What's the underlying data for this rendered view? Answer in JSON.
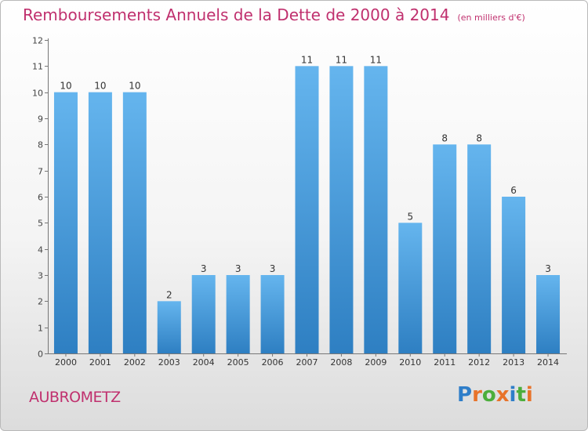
{
  "header": {
    "title": "Remboursements Annuels de la Dette de 2000 à 2014",
    "unit": "(en milliers d'€)"
  },
  "footer": {
    "commune": "AUBROMETZ",
    "logo": "Proxiti"
  },
  "colors": {
    "title": "#c0306e",
    "bar_light": "#65b5ee",
    "bar_dark": "#2e7fc2",
    "logo_letters": [
      "#2f7ec9",
      "#e8732a",
      "#4cae3c",
      "#e8732a",
      "#2f7ec9",
      "#4cae3c",
      "#e8732a"
    ]
  },
  "chart_data": {
    "type": "bar",
    "categories": [
      "2000",
      "2001",
      "2002",
      "2003",
      "2004",
      "2005",
      "2006",
      "2007",
      "2008",
      "2009",
      "2010",
      "2011",
      "2012",
      "2013",
      "2014"
    ],
    "values": [
      10,
      10,
      10,
      2,
      3,
      3,
      3,
      11,
      11,
      11,
      5,
      8,
      8,
      6,
      3
    ],
    "data_labels": [
      "10",
      "10",
      "10",
      "2",
      "3",
      "3",
      "3",
      "11",
      "11",
      "11",
      "5",
      "8",
      "8",
      "6",
      "3"
    ],
    "y_ticks": [
      "0",
      "1",
      "2",
      "3",
      "4",
      "5",
      "6",
      "7",
      "8",
      "9",
      "10",
      "11",
      "12"
    ],
    "ylim": [
      0,
      12
    ],
    "grid": false,
    "legend": "none"
  }
}
